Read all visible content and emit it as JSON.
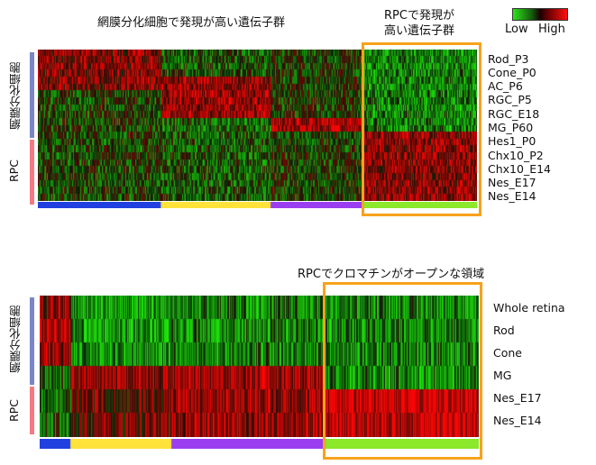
{
  "top_panel": {
    "title": "網膜分化細胞で発現が高い遺伝子群",
    "highlight_title_line1": "RPCで発現が",
    "highlight_title_line2": "高い遺伝子群",
    "group_label_top": "網膜分化細胞",
    "group_label_bottom": "RPC",
    "rows": [
      "Rod_P3",
      "Cone_P0",
      "AC_P6",
      "RGC_P5",
      "RGC_E18",
      "MG_P60",
      "Hes1_P0",
      "Chx10_P2",
      "Chx10_E14",
      "Nes_E17",
      "Nes_E14"
    ]
  },
  "bottom_panel": {
    "title": "RPCでクロマチンがオープンな領域",
    "group_label_top": "網膜分化細胞",
    "group_label_bottom": "RPC",
    "rows": [
      "Whole retina",
      "Rod",
      "Cone",
      "MG",
      "Nes_E17",
      "Nes_E14"
    ]
  },
  "legend": {
    "low": "Low",
    "high": "High"
  },
  "colors": {
    "accent_orange": "#f7a21b",
    "differentiated_bar": "#7b86c6",
    "rpc_bar": "#f47a82",
    "cluster_blue": "#2040e0",
    "cluster_yellow": "#ffe23a",
    "cluster_purple": "#9a3ff0",
    "cluster_green": "#8be82a"
  }
}
